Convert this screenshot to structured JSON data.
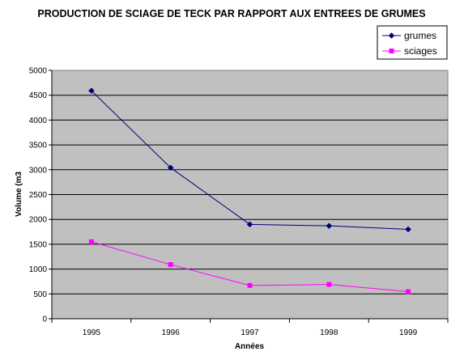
{
  "chart_data": {
    "type": "line",
    "title": "PRODUCTION DE SCIAGE DE TECK PAR RAPPORT AUX ENTREES DE GRUMES",
    "xlabel": "Années",
    "ylabel": "Volume (m3",
    "categories": [
      "1995",
      "1996",
      "1997",
      "1998",
      "1999"
    ],
    "ylim": [
      0,
      5000
    ],
    "yticks": [
      "0",
      "500",
      "1000",
      "1500",
      "2000",
      "2500",
      "3000",
      "3500",
      "4000",
      "4500",
      "5000"
    ],
    "grid": true,
    "legend_position": "top-right",
    "plot_background": "#c0c0c0",
    "series": [
      {
        "name": "grumes",
        "values": [
          4590,
          3040,
          1900,
          1870,
          1800
        ],
        "color": "#000080",
        "marker": "diamond"
      },
      {
        "name": "sciages",
        "values": [
          1550,
          1090,
          670,
          690,
          545
        ],
        "color": "#ff00ff",
        "marker": "square"
      }
    ]
  }
}
